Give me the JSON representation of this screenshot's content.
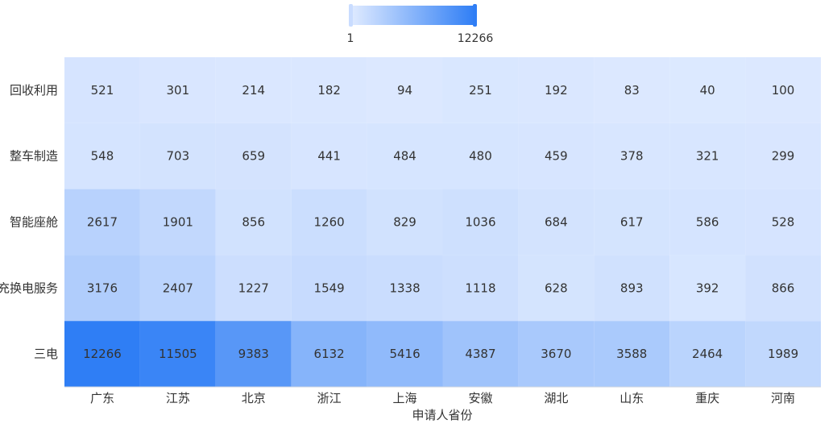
{
  "chart_data": {
    "type": "heatmap",
    "title": "",
    "xlabel": "申请人省份",
    "ylabel": "",
    "x_categories": [
      "广东",
      "江苏",
      "北京",
      "浙江",
      "上海",
      "安徽",
      "湖北",
      "山东",
      "重庆",
      "河南"
    ],
    "y_categories": [
      "回收利用",
      "整车制造",
      "智能座舱",
      "充换电服务",
      "三电"
    ],
    "values": [
      [
        521,
        301,
        214,
        182,
        94,
        251,
        192,
        83,
        40,
        100
      ],
      [
        548,
        703,
        659,
        441,
        484,
        480,
        459,
        378,
        321,
        299
      ],
      [
        2617,
        1901,
        856,
        1260,
        829,
        1036,
        684,
        617,
        586,
        528
      ],
      [
        3176,
        2407,
        1227,
        1549,
        1338,
        1118,
        628,
        893,
        392,
        866
      ],
      [
        12266,
        11505,
        9383,
        6132,
        5416,
        4387,
        3670,
        3588,
        2464,
        1989
      ]
    ],
    "color_scale": {
      "min": 1,
      "max": 12266,
      "min_label": "1",
      "max_label": "12266",
      "min_color": "#dde9ff",
      "max_color": "#2f7ef5"
    },
    "legend_position": "top-center",
    "grid": false
  }
}
